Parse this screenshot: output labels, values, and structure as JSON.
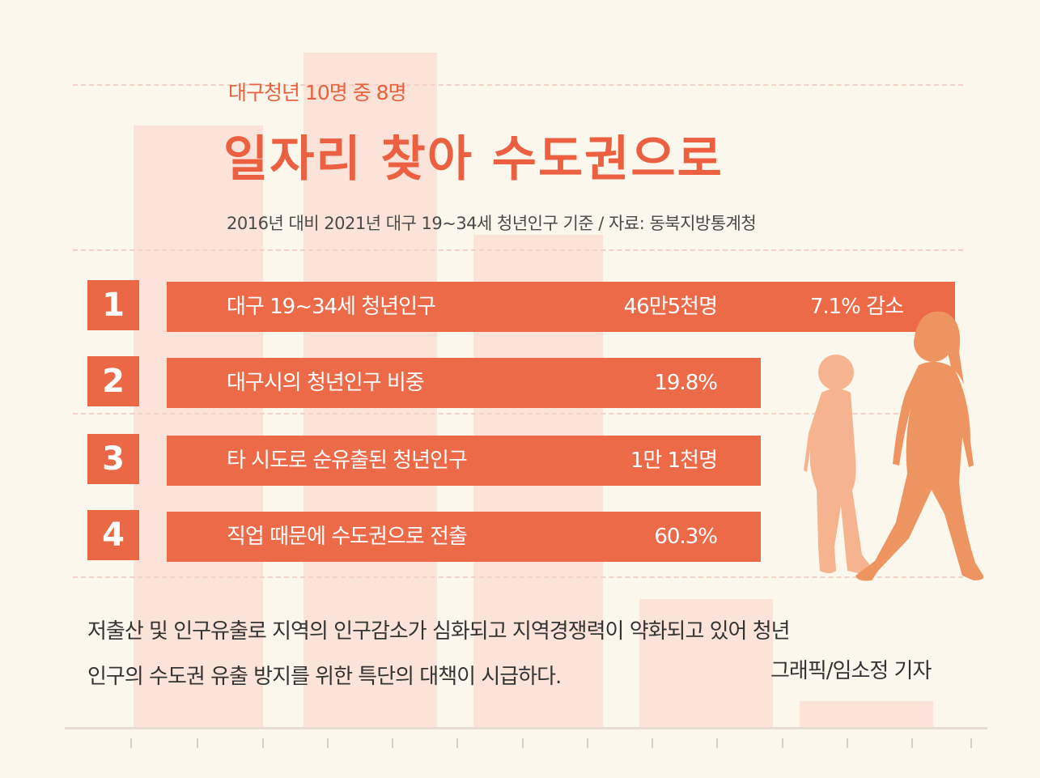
{
  "header": {
    "subtitle": "대구청년 10명 중 8명",
    "title": "일자리 찾아 수도권으로",
    "source": "2016년 대비 2021년 대구 19~34세 청년인구 기준 / 자료: 동북지방통계청"
  },
  "rows": [
    {
      "number": "1",
      "label": "대구 19~34세 청년인구",
      "value": "46만5천명",
      "change": "7.1% 감소"
    },
    {
      "number": "2",
      "label": "대구시의 청년인구 비중",
      "value": "19.8%"
    },
    {
      "number": "3",
      "label": "타 시도로 순유출된 청년인구",
      "value": "1만 1천명"
    },
    {
      "number": "4",
      "label": "직업 때문에 수도권으로 전출",
      "value": "60.3%"
    }
  ],
  "body": {
    "line1": "저출산 및 인구유출로 지역의 인구감소가 심화되고 지역경쟁력이 약화되고 있어  청년",
    "line2": "인구의 수도권 유출 방지를 위한 특단의 대책이 시급하다.",
    "credit": "그래픽/임소정 기자"
  },
  "icons": {
    "illustration": "walking-people-icon"
  },
  "colors": {
    "accent": "#ea6040",
    "bar": "#ec6a48",
    "background": "#fcf7ec",
    "background_bars": "#fbe3d9",
    "child_silhouette": "#f6b38f",
    "adult_silhouette": "#ee9461"
  }
}
